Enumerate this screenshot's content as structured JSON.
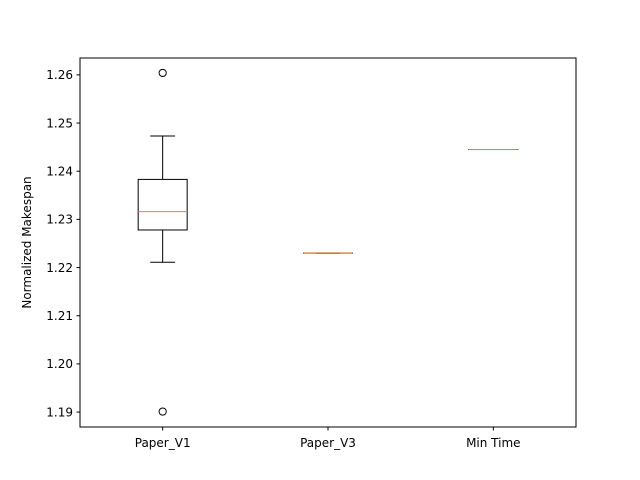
{
  "chart_data": {
    "type": "box",
    "title": "",
    "xlabel": "",
    "ylabel": "Normalized Makespan",
    "ylim": [
      1.1869,
      1.2635
    ],
    "yticks": [
      1.19,
      1.2,
      1.21,
      1.22,
      1.23,
      1.24,
      1.25,
      1.26
    ],
    "ytick_labels": [
      "1.19",
      "1.20",
      "1.21",
      "1.22",
      "1.23",
      "1.24",
      "1.25",
      "1.26"
    ],
    "grid": false,
    "categories": [
      "Paper_V1",
      "Paper_V3",
      "Min Time"
    ],
    "boxes": [
      {
        "label": "Paper_V1",
        "whisker_low": 1.2211,
        "q1": 1.2278,
        "median": 1.2316,
        "q3": 1.2383,
        "whisker_high": 1.2473,
        "outliers": [
          1.2604,
          1.1901
        ]
      },
      {
        "label": "Paper_V3",
        "whisker_low": 1.223,
        "q1": 1.223,
        "median": 1.223,
        "q3": 1.223,
        "whisker_high": 1.223,
        "outliers": []
      },
      {
        "label": "Min Time",
        "whisker_low": 1.2445,
        "q1": 1.2445,
        "median": 1.2445,
        "q3": 1.2445,
        "whisker_high": 1.2445,
        "outliers": []
      }
    ],
    "colors": {
      "box": "#000000",
      "median": "#ff7f0e",
      "outlier": "#000000"
    }
  }
}
